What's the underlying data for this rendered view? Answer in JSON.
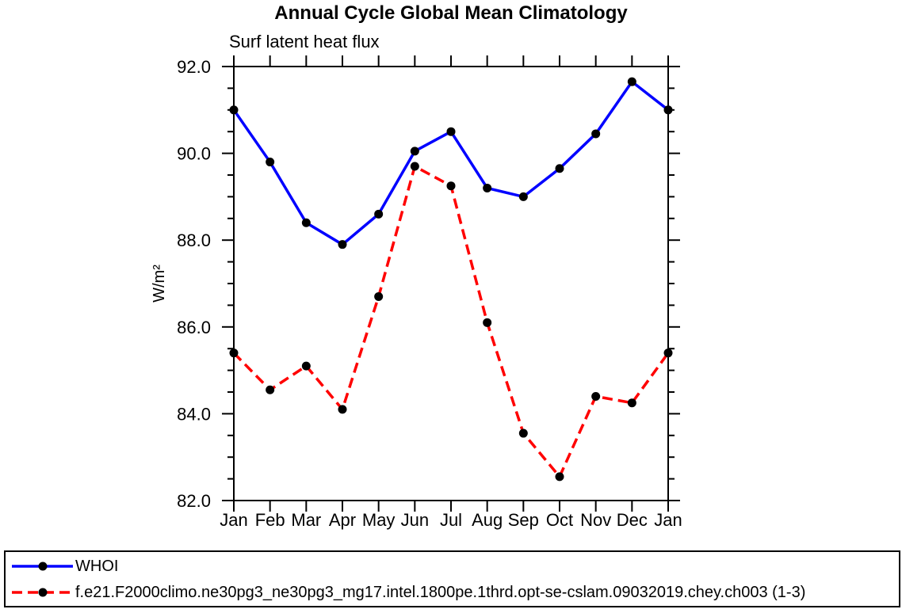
{
  "chart_data": {
    "type": "line",
    "title": "Annual Cycle Global Mean Climatology",
    "subtitle": "Surf latent heat flux",
    "ylabel": "W/m²",
    "xlabel": "",
    "categories": [
      "Jan",
      "Feb",
      "Mar",
      "Apr",
      "May",
      "Jun",
      "Jul",
      "Aug",
      "Sep",
      "Oct",
      "Nov",
      "Dec",
      "Jan"
    ],
    "series": [
      {
        "name": "WHOI",
        "color": "#0000ff",
        "style": "solid",
        "values": [
          91.0,
          89.8,
          88.4,
          87.9,
          88.6,
          90.05,
          90.5,
          89.2,
          89.0,
          89.65,
          90.45,
          91.65,
          91.0
        ]
      },
      {
        "name": "f.e21.F2000climo.ne30pg3_ne30pg3_mg17.intel.1800pe.1thrd.opt-se-cslam.09032019.chey.ch003 (1-3)",
        "color": "#ff0000",
        "style": "dashed",
        "values": [
          85.4,
          84.55,
          85.1,
          84.1,
          86.7,
          89.7,
          89.25,
          86.1,
          83.55,
          82.55,
          84.4,
          84.25,
          85.4
        ]
      }
    ],
    "ylim": [
      82.0,
      92.0
    ],
    "ytick_major_interval": 2.0,
    "ytick_minor_interval": 0.5,
    "ytick_labels": [
      "82.0",
      "84.0",
      "86.0",
      "88.0",
      "90.0",
      "92.0"
    ],
    "marker_color": "#000000",
    "axis_color": "#000000",
    "grid": "off",
    "legend_position": "bottom"
  }
}
